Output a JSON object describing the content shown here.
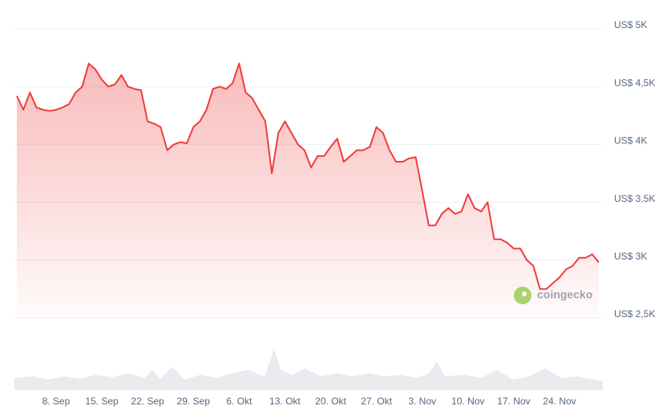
{
  "chart_data": {
    "type": "line",
    "x": [
      "2. Sep",
      "3. Sep",
      "4. Sep",
      "5. Sep",
      "6. Sep",
      "7. Sep",
      "8. Sep",
      "9. Sep",
      "10. Sep",
      "11. Sep",
      "12. Sep",
      "13. Sep",
      "14. Sep",
      "15. Sep",
      "16. Sep",
      "17. Sep",
      "18. Sep",
      "19. Sep",
      "20. Sep",
      "21. Sep",
      "22. Sep",
      "23. Sep",
      "24. Sep",
      "25. Sep",
      "26. Sep",
      "27. Sep",
      "28. Sep",
      "29. Sep",
      "30. Sep",
      "1. Okt",
      "2. Okt",
      "3. Okt",
      "4. Okt",
      "5. Okt",
      "6. Okt",
      "7. Okt",
      "8. Okt",
      "9. Okt",
      "10. Okt",
      "11. Okt",
      "12. Okt",
      "13. Okt",
      "14. Okt",
      "15. Okt",
      "16. Okt",
      "17. Okt",
      "18. Okt",
      "19. Okt",
      "20. Okt",
      "21. Okt",
      "22. Okt",
      "23. Okt",
      "24. Okt",
      "25. Okt",
      "26. Okt",
      "27. Okt",
      "28. Okt",
      "29. Okt",
      "30. Okt",
      "31. Okt",
      "1. Nov",
      "2. Nov",
      "3. Nov",
      "4. Nov",
      "5. Nov",
      "6. Nov",
      "7. Nov",
      "8. Nov",
      "9. Nov",
      "10. Nov",
      "11. Nov",
      "12. Nov",
      "13. Nov",
      "14. Nov",
      "15. Nov",
      "16. Nov",
      "17. Nov",
      "18. Nov",
      "19. Nov",
      "20. Nov",
      "21. Nov",
      "22. Nov",
      "23. Nov",
      "24. Nov",
      "25. Nov",
      "26. Nov",
      "27. Nov",
      "28. Nov",
      "29. Nov",
      "30. Nov"
    ],
    "values": [
      4420,
      4300,
      4450,
      4320,
      4300,
      4290,
      4300,
      4320,
      4350,
      4450,
      4500,
      4700,
      4650,
      4560,
      4500,
      4520,
      4600,
      4500,
      4480,
      4470,
      4200,
      4180,
      4150,
      3950,
      4000,
      4020,
      4010,
      4150,
      4200,
      4300,
      4480,
      4500,
      4480,
      4530,
      4700,
      4450,
      4400,
      4300,
      4200,
      3750,
      4100,
      4200,
      4100,
      4000,
      3950,
      3800,
      3900,
      3900,
      3980,
      4050,
      3850,
      3900,
      3950,
      3950,
      3980,
      4150,
      4100,
      3950,
      3850,
      3850,
      3880,
      3890,
      3600,
      3300,
      3300,
      3400,
      3450,
      3400,
      3420,
      3570,
      3450,
      3420,
      3500,
      3180,
      3180,
      3150,
      3100,
      3100,
      3000,
      2950,
      2750,
      2750,
      2800,
      2850,
      2920,
      2950,
      3020,
      3020,
      3050,
      2980
    ],
    "color": "#f03c3c",
    "ylim": [
      2500,
      5000
    ],
    "yticks": [
      {
        "value": 2500,
        "label": "US$ 2,5K"
      },
      {
        "value": 3000,
        "label": "US$ 3K"
      },
      {
        "value": 3500,
        "label": "US$ 3,5K"
      },
      {
        "value": 4000,
        "label": "US$ 4K"
      },
      {
        "value": 4500,
        "label": "US$ 4,5K"
      },
      {
        "value": 5000,
        "label": "US$ 5K"
      }
    ],
    "xticks": [
      "8. Sep",
      "15. Sep",
      "22. Sep",
      "29. Sep",
      "6. Okt",
      "13. Okt",
      "20. Okt",
      "27. Okt",
      "3. Nov",
      "10. Nov",
      "17. Nov",
      "24. Nov"
    ],
    "grid": true,
    "watermark": "coingecko"
  }
}
